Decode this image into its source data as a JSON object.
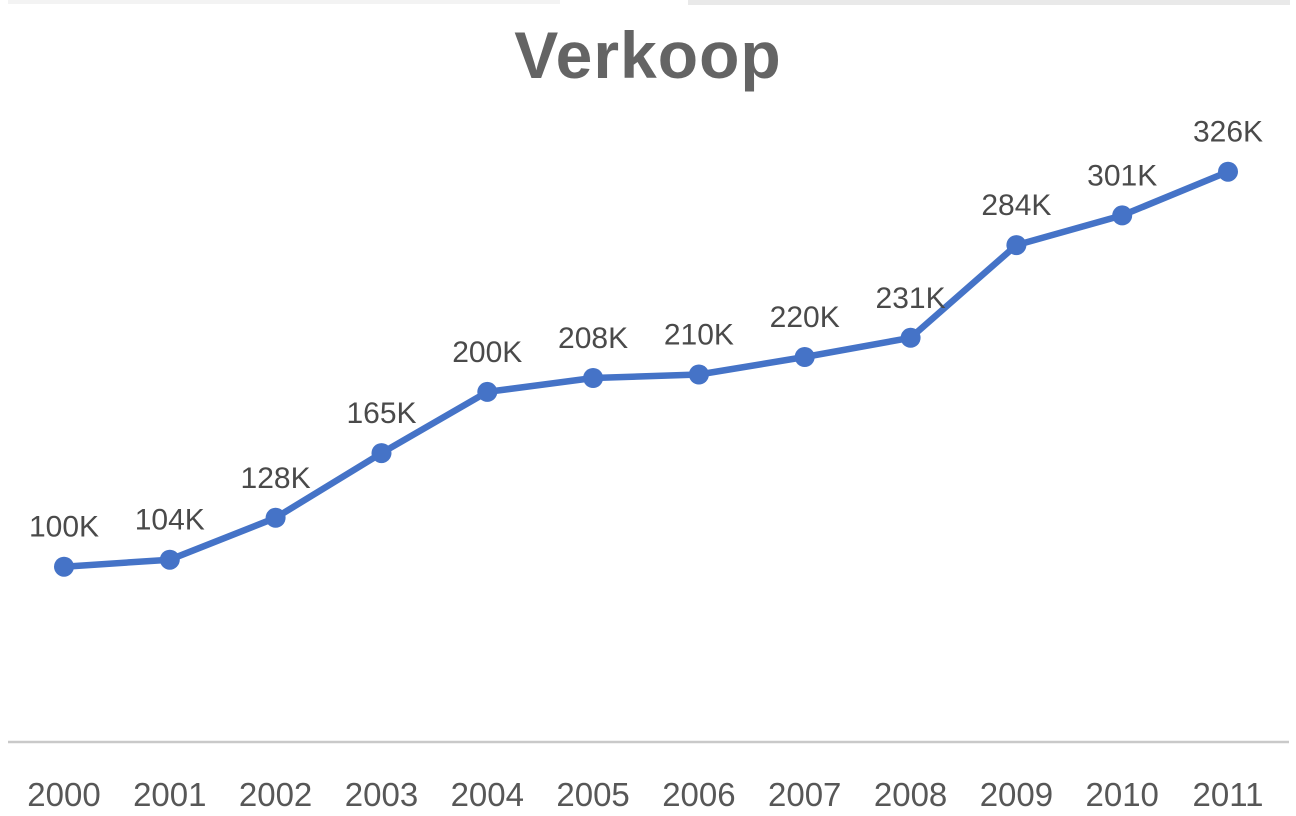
{
  "figure": {
    "title": "Verkoop"
  },
  "chart_data": {
    "type": "line",
    "title": "Verkoop",
    "categories": [
      "2000",
      "2001",
      "2002",
      "2003",
      "2004",
      "2005",
      "2006",
      "2007",
      "2008",
      "2009",
      "2010",
      "2011"
    ],
    "series": [
      {
        "name": "Verkoop",
        "values": [
          100,
          104,
          128,
          165,
          200,
          208,
          210,
          220,
          231,
          284,
          301,
          326
        ],
        "unit": "K",
        "labels": [
          "100K",
          "104K",
          "128K",
          "165K",
          "200K",
          "208K",
          "210K",
          "220K",
          "231K",
          "284K",
          "301K",
          "326K"
        ],
        "color": "#4573c7"
      }
    ],
    "xlabel": "",
    "ylabel": "",
    "ylim": [
      0,
      424
    ],
    "grid": false,
    "legend": false,
    "markers": true,
    "data_labels": true,
    "axis_line_color": "#c9c9c9",
    "label_color": "#4a4a4a",
    "tick_color": "#575757",
    "title_color": "#646464",
    "background": "#ffffff"
  }
}
